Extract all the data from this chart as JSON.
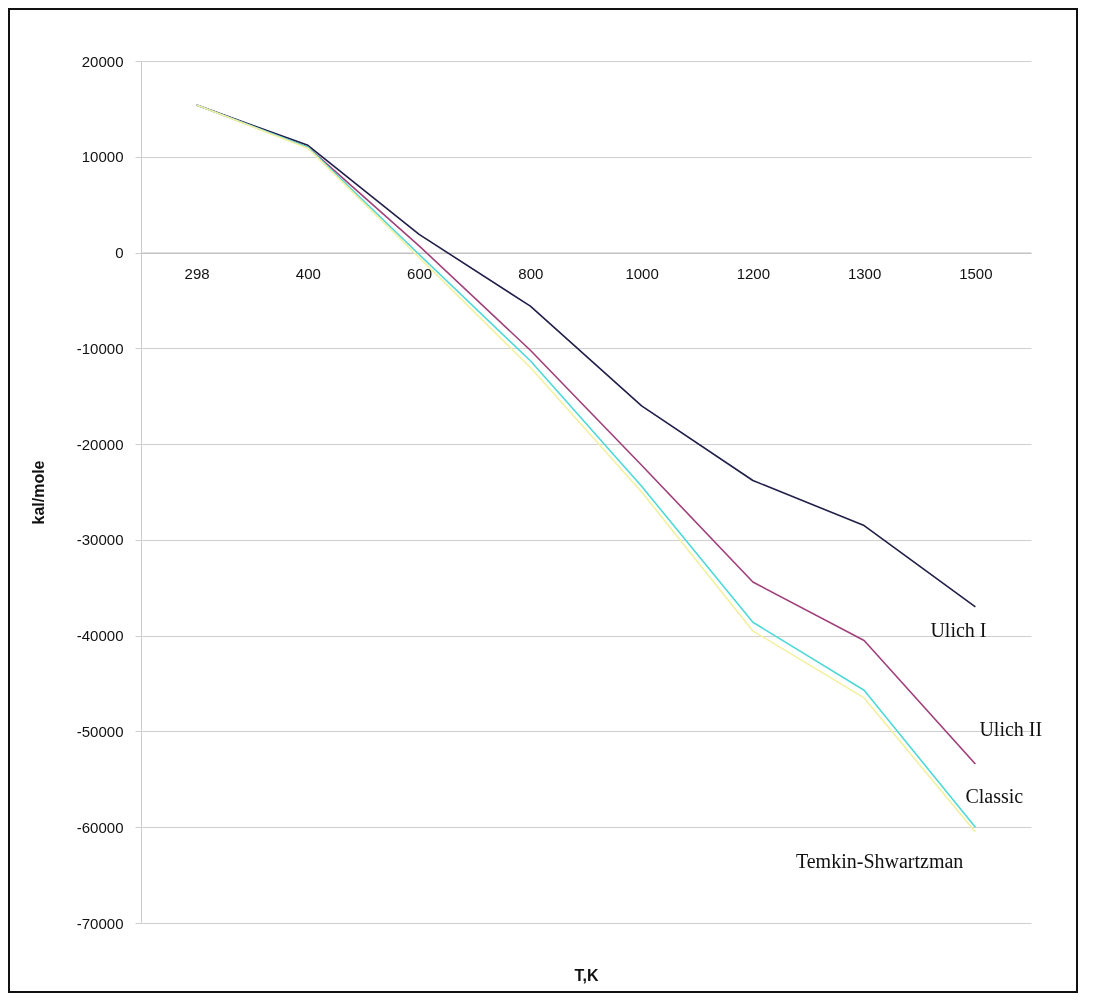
{
  "chart_data": {
    "type": "line",
    "xlabel": "T,K",
    "ylabel": "kal/mole",
    "categories": [
      "298",
      "400",
      "600",
      "800",
      "1000",
      "1200",
      "1300",
      "1500"
    ],
    "ylim": [
      -70000,
      20000
    ],
    "yticks": [
      -70000,
      -60000,
      -50000,
      -40000,
      -30000,
      -20000,
      -10000,
      0,
      10000,
      20000
    ],
    "grid": "y",
    "legend": false,
    "series": [
      {
        "name": "Ulich I",
        "color": "#1f1f4a",
        "values": [
          15400,
          11200,
          1900,
          -5600,
          -16000,
          -23800,
          -28500,
          -37000
        ]
      },
      {
        "name": "Ulich II",
        "color": "#a0407a",
        "values": [
          15400,
          11000,
          700,
          -10200,
          -22200,
          -34400,
          -40500,
          -53400
        ]
      },
      {
        "name": "Classic",
        "color": "#4fd8d8",
        "values": [
          15400,
          11000,
          -200,
          -11300,
          -24400,
          -38600,
          -45700,
          -60000
        ]
      },
      {
        "name": "Temkin-Shwartzman",
        "color": "#f4f0a0",
        "values": [
          15400,
          10900,
          -500,
          -12000,
          -25000,
          -39500,
          -46500,
          -60500
        ]
      }
    ]
  }
}
